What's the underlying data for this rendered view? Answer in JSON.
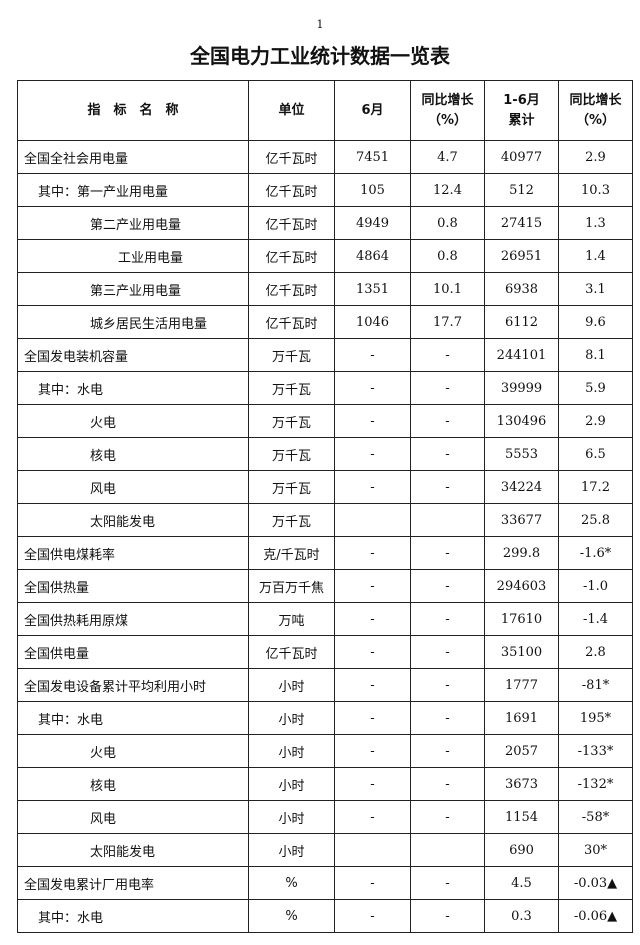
{
  "page_number": "1",
  "title": "全国电力工业统计数据一览表",
  "headers": [
    "指　标　名　称",
    "单位",
    "6月",
    "同比增长\n（%）",
    "1-6月\n累计",
    "同比增长\n（%）"
  ],
  "rows": [
    {
      "name": "全国全社会用电量",
      "indent": 0,
      "unit": "亿千瓦时",
      "june": "7451",
      "june_yoy": "4.7",
      "ytd": "40977",
      "ytd_yoy": "2.9"
    },
    {
      "name": "其中：第一产业用电量",
      "indent": 1,
      "unit": "亿千瓦时",
      "june": "105",
      "june_yoy": "12.4",
      "ytd": "512",
      "ytd_yoy": "10.3"
    },
    {
      "name": "第二产业用电量",
      "indent": 2,
      "unit": "亿千瓦时",
      "june": "4949",
      "june_yoy": "0.8",
      "ytd": "27415",
      "ytd_yoy": "1.3"
    },
    {
      "name": "工业用电量",
      "indent": 3,
      "unit": "亿千瓦时",
      "june": "4864",
      "june_yoy": "0.8",
      "ytd": "26951",
      "ytd_yoy": "1.4"
    },
    {
      "name": "第三产业用电量",
      "indent": 2,
      "unit": "亿千瓦时",
      "june": "1351",
      "june_yoy": "10.1",
      "ytd": "6938",
      "ytd_yoy": "3.1"
    },
    {
      "name": "城乡居民生活用电量",
      "indent": 2,
      "unit": "亿千瓦时",
      "june": "1046",
      "june_yoy": "17.7",
      "ytd": "6112",
      "ytd_yoy": "9.6"
    },
    {
      "name": "全国发电装机容量",
      "indent": 0,
      "unit": "万千瓦",
      "june": "-",
      "june_yoy": "-",
      "ytd": "244101",
      "ytd_yoy": "8.1"
    },
    {
      "name": "其中：水电",
      "indent": 1,
      "unit": "万千瓦",
      "june": "-",
      "june_yoy": "-",
      "ytd": "39999",
      "ytd_yoy": "5.9"
    },
    {
      "name": "火电",
      "indent": 2,
      "unit": "万千瓦",
      "june": "-",
      "june_yoy": "-",
      "ytd": "130496",
      "ytd_yoy": "2.9"
    },
    {
      "name": "核电",
      "indent": 2,
      "unit": "万千瓦",
      "june": "-",
      "june_yoy": "-",
      "ytd": "5553",
      "ytd_yoy": "6.5"
    },
    {
      "name": "风电",
      "indent": 2,
      "unit": "万千瓦",
      "june": "-",
      "june_yoy": "-",
      "ytd": "34224",
      "ytd_yoy": "17.2"
    },
    {
      "name": "太阳能发电",
      "indent": 2,
      "unit": "万千瓦",
      "june": "",
      "june_yoy": "",
      "ytd": "33677",
      "ytd_yoy": "25.8"
    },
    {
      "name": "全国供电煤耗率",
      "indent": 0,
      "unit": "克/千瓦时",
      "june": "-",
      "june_yoy": "-",
      "ytd": "299.8",
      "ytd_yoy": "-1.6*"
    },
    {
      "name": "全国供热量",
      "indent": 0,
      "unit": "万百万千焦",
      "june": "-",
      "june_yoy": "-",
      "ytd": "294603",
      "ytd_yoy": "-1.0"
    },
    {
      "name": "全国供热耗用原煤",
      "indent": 0,
      "unit": "万吨",
      "june": "-",
      "june_yoy": "-",
      "ytd": "17610",
      "ytd_yoy": "-1.4"
    },
    {
      "name": "全国供电量",
      "indent": 0,
      "unit": "亿千瓦时",
      "june": "-",
      "june_yoy": "-",
      "ytd": "35100",
      "ytd_yoy": "2.8"
    },
    {
      "name": "全国发电设备累计平均利用小时",
      "indent": 0,
      "unit": "小时",
      "june": "-",
      "june_yoy": "-",
      "ytd": "1777",
      "ytd_yoy": "-81*"
    },
    {
      "name": "其中：水电",
      "indent": 1,
      "unit": "小时",
      "june": "-",
      "june_yoy": "-",
      "ytd": "1691",
      "ytd_yoy": "195*"
    },
    {
      "name": "火电",
      "indent": 2,
      "unit": "小时",
      "june": "-",
      "june_yoy": "-",
      "ytd": "2057",
      "ytd_yoy": "-133*"
    },
    {
      "name": "核电",
      "indent": 2,
      "unit": "小时",
      "june": "-",
      "june_yoy": "-",
      "ytd": "3673",
      "ytd_yoy": "-132*"
    },
    {
      "name": "风电",
      "indent": 2,
      "unit": "小时",
      "june": "-",
      "june_yoy": "-",
      "ytd": "1154",
      "ytd_yoy": "-58*"
    },
    {
      "name": "太阳能发电",
      "indent": 2,
      "unit": "小时",
      "june": "",
      "june_yoy": "",
      "ytd": "690",
      "ytd_yoy": "30*"
    },
    {
      "name": "全国发电累计厂用电率",
      "indent": 0,
      "unit": "%",
      "june": "-",
      "june_yoy": "-",
      "ytd": "4.5",
      "ytd_yoy": "-0.03▲"
    },
    {
      "name": "其中：水电",
      "indent": 1,
      "unit": "%",
      "june": "-",
      "june_yoy": "-",
      "ytd": "0.3",
      "ytd_yoy": "-0.06▲"
    }
  ]
}
